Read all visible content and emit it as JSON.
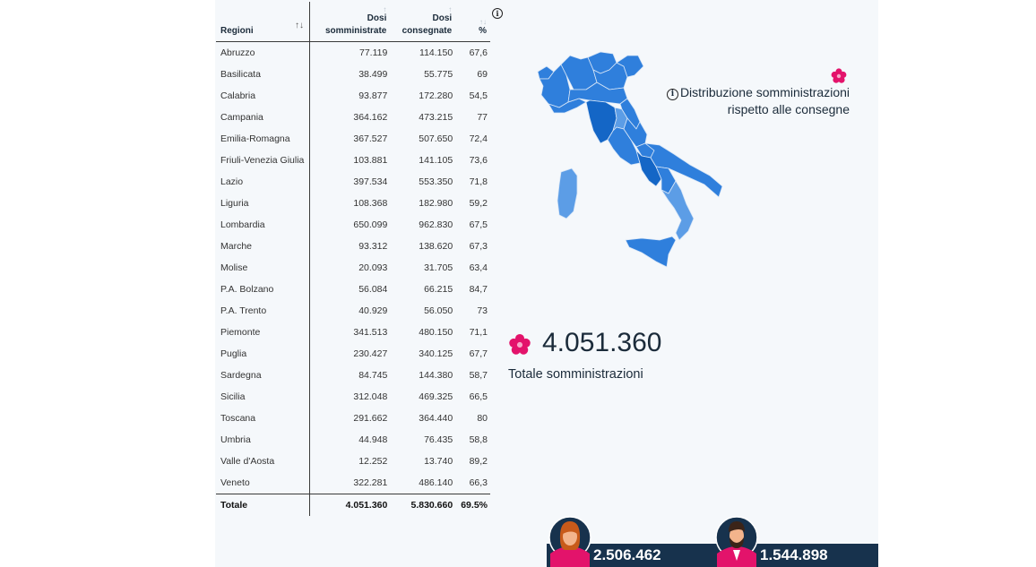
{
  "table": {
    "headers": {
      "region": "Regioni",
      "administered_line1": "Dosi",
      "administered_line2": "somministrate",
      "delivered_line1": "Dosi",
      "delivered_line2": "consegnate",
      "percent": "%"
    },
    "rows": [
      {
        "region": "Abruzzo",
        "administered": "77.119",
        "delivered": "114.150",
        "pct": "67,6"
      },
      {
        "region": "Basilicata",
        "administered": "38.499",
        "delivered": "55.775",
        "pct": "69"
      },
      {
        "region": "Calabria",
        "administered": "93.877",
        "delivered": "172.280",
        "pct": "54,5"
      },
      {
        "region": "Campania",
        "administered": "364.162",
        "delivered": "473.215",
        "pct": "77"
      },
      {
        "region": "Emilia-Romagna",
        "administered": "367.527",
        "delivered": "507.650",
        "pct": "72,4"
      },
      {
        "region": "Friuli-Venezia Giulia",
        "administered": "103.881",
        "delivered": "141.105",
        "pct": "73,6"
      },
      {
        "region": "Lazio",
        "administered": "397.534",
        "delivered": "553.350",
        "pct": "71,8"
      },
      {
        "region": "Liguria",
        "administered": "108.368",
        "delivered": "182.980",
        "pct": "59,2"
      },
      {
        "region": "Lombardia",
        "administered": "650.099",
        "delivered": "962.830",
        "pct": "67,5"
      },
      {
        "region": "Marche",
        "administered": "93.312",
        "delivered": "138.620",
        "pct": "67,3"
      },
      {
        "region": "Molise",
        "administered": "20.093",
        "delivered": "31.705",
        "pct": "63,4"
      },
      {
        "region": "P.A. Bolzano",
        "administered": "56.084",
        "delivered": "66.215",
        "pct": "84,7"
      },
      {
        "region": "P.A. Trento",
        "administered": "40.929",
        "delivered": "56.050",
        "pct": "73"
      },
      {
        "region": "Piemonte",
        "administered": "341.513",
        "delivered": "480.150",
        "pct": "71,1"
      },
      {
        "region": "Puglia",
        "administered": "230.427",
        "delivered": "340.125",
        "pct": "67,7"
      },
      {
        "region": "Sardegna",
        "administered": "84.745",
        "delivered": "144.380",
        "pct": "58,7"
      },
      {
        "region": "Sicilia",
        "administered": "312.048",
        "delivered": "469.325",
        "pct": "66,5"
      },
      {
        "region": "Toscana",
        "administered": "291.662",
        "delivered": "364.440",
        "pct": "80"
      },
      {
        "region": "Umbria",
        "administered": "44.948",
        "delivered": "76.435",
        "pct": "58,8"
      },
      {
        "region": "Valle d'Aosta",
        "administered": "12.252",
        "delivered": "13.740",
        "pct": "89,2"
      },
      {
        "region": "Veneto",
        "administered": "322.281",
        "delivered": "486.140",
        "pct": "66,3"
      }
    ],
    "total": {
      "label": "Totale",
      "administered": "4.051.360",
      "delivered": "5.830.660",
      "pct": "69.5%"
    }
  },
  "map": {
    "legend_line1": "Distribuzione somministrazioni",
    "legend_line2": "rispetto alle consegne",
    "colors": {
      "dark": "#1466c6",
      "medium": "#2f7fdc",
      "light": "#5c9de6",
      "border": "#d8e6f7"
    }
  },
  "summary": {
    "total_value": "4.051.360",
    "total_label": "Totale somministrazioni"
  },
  "gender": {
    "women": "2.506.462",
    "men": "1.544.898",
    "bar_color": "#17324d",
    "accent_color": "#e3136b"
  },
  "icons": [
    "info-icon",
    "sort-icon",
    "flower-icon",
    "woman-avatar-icon",
    "man-avatar-icon"
  ]
}
